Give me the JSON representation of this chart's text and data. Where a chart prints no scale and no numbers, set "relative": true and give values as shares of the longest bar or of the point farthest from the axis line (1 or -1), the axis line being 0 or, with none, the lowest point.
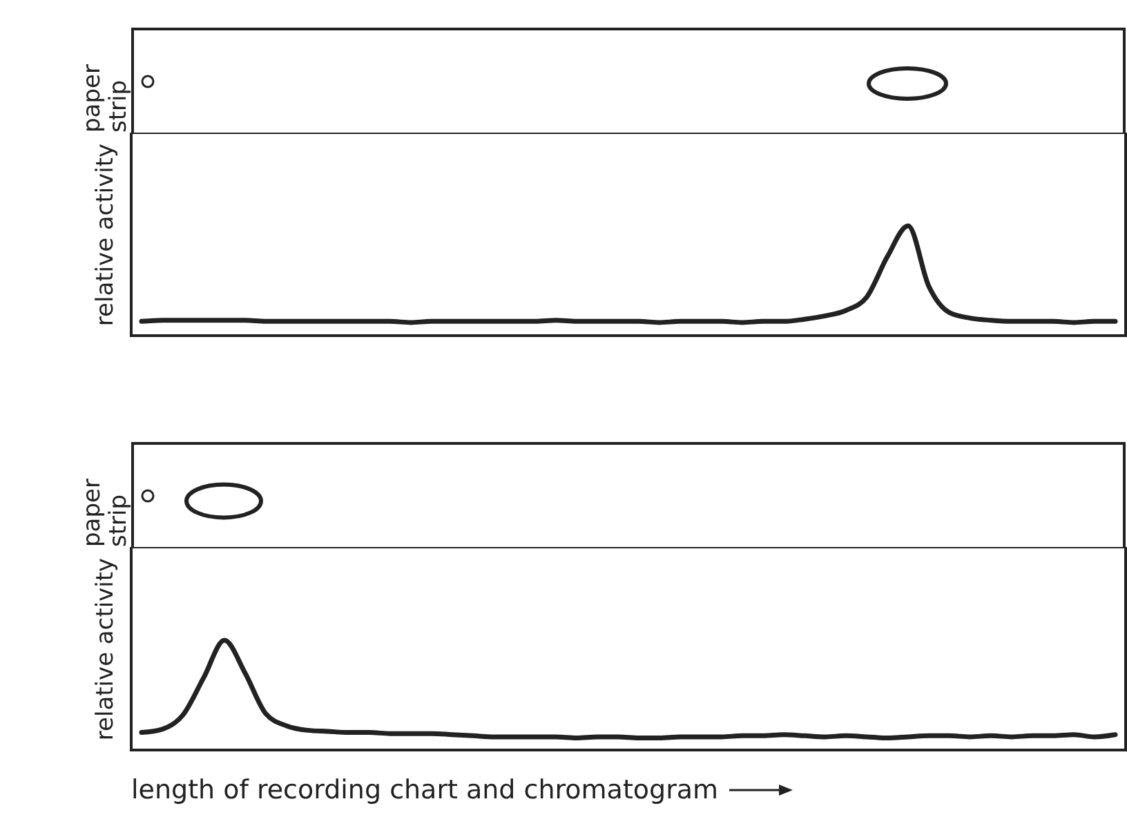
{
  "chart_data": [
    {
      "type": "line",
      "relative": true,
      "ylabel": "relative activity",
      "annotations": [
        "paper strip"
      ],
      "color": "#222222",
      "categories": [
        null,
        null,
        null,
        null,
        null,
        null,
        null,
        null,
        null,
        null,
        null,
        null,
        null,
        null,
        null,
        null,
        null,
        null,
        null,
        null,
        null,
        null,
        null,
        null,
        null,
        null,
        null,
        null,
        null,
        null,
        null,
        null,
        null,
        null,
        null,
        null,
        null,
        null,
        null,
        null,
        null,
        null,
        null,
        null,
        null,
        null,
        null,
        null
      ],
      "values": [
        0.13,
        0.14,
        0.14,
        0.14,
        0.14,
        0.14,
        0.13,
        0.13,
        0.13,
        0.13,
        0.13,
        0.13,
        0.13,
        0.12,
        0.13,
        0.13,
        0.13,
        0.13,
        0.13,
        0.13,
        0.14,
        0.13,
        0.13,
        0.13,
        0.13,
        0.12,
        0.13,
        0.13,
        0.13,
        0.12,
        0.13,
        0.13,
        0.15,
        0.18,
        0.23,
        0.35,
        0.72,
        1,
        0.45,
        0.21,
        0.16,
        0.14,
        0.13,
        0.13,
        0.13,
        0.12,
        0.13,
        0.13
      ]
    },
    {
      "type": "line",
      "relative": true,
      "ylabel": "relative activity",
      "xlabel": "length of recording chart and chromatogram",
      "annotations": [
        "paper strip"
      ],
      "color": "#222222",
      "categories": [
        null,
        null,
        null,
        null,
        null,
        null,
        null,
        null,
        null,
        null,
        null,
        null,
        null,
        null,
        null,
        null,
        null,
        null,
        null,
        null,
        null,
        null,
        null,
        null,
        null,
        null,
        null,
        null,
        null,
        null,
        null,
        null,
        null,
        null,
        null,
        null,
        null,
        null,
        null,
        null,
        null,
        null,
        null,
        null,
        null,
        null,
        null,
        null
      ],
      "values": [
        0.16,
        0.19,
        0.32,
        0.66,
        1,
        0.7,
        0.33,
        0.22,
        0.18,
        0.17,
        0.16,
        0.16,
        0.15,
        0.15,
        0.15,
        0.14,
        0.13,
        0.12,
        0.12,
        0.12,
        0.12,
        0.11,
        0.12,
        0.12,
        0.11,
        0.11,
        0.12,
        0.12,
        0.12,
        0.13,
        0.13,
        0.14,
        0.13,
        0.12,
        0.13,
        0.12,
        0.11,
        0.12,
        0.13,
        0.13,
        0.12,
        0.13,
        0.12,
        0.13,
        0.13,
        0.14,
        0.12,
        0.14
      ]
    }
  ]
}
